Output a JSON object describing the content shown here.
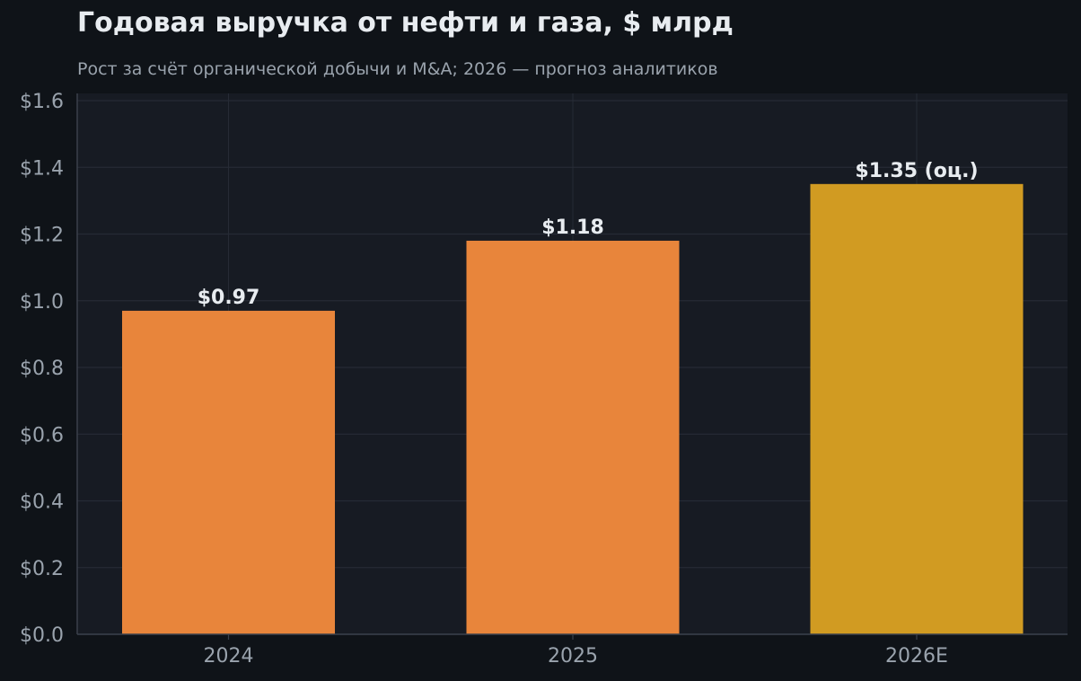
{
  "chart_data": {
    "type": "bar",
    "title": "Годовая выручка от нефти и газа, $ млрд",
    "subtitle": "Рост за счёт органической добычи и M&A; 2026 — прогноз аналитиков",
    "categories": [
      "2024",
      "2025",
      "2026E"
    ],
    "values": [
      0.97,
      1.18,
      1.35
    ],
    "data_labels": [
      "$0.97",
      "$1.18",
      "$1.35 (оц.)"
    ],
    "bar_colors": [
      "#e8853b",
      "#e8853b",
      "#d19b22"
    ],
    "ylim": [
      0,
      1.6
    ],
    "yticks": [
      0,
      0.2,
      0.4,
      0.6,
      0.8,
      1.0,
      1.2,
      1.4,
      1.6
    ],
    "ytick_labels": [
      "$0.0",
      "$0.2",
      "$0.4",
      "$0.6",
      "$0.8",
      "$1.0",
      "$1.2",
      "$1.4",
      "$1.6"
    ],
    "xlabel": "",
    "ylabel": "",
    "grid": true,
    "colors": {
      "background": "#0f1318",
      "plot_background": "#171b23",
      "grid": "#262b35",
      "axis": "#3a404b"
    }
  }
}
